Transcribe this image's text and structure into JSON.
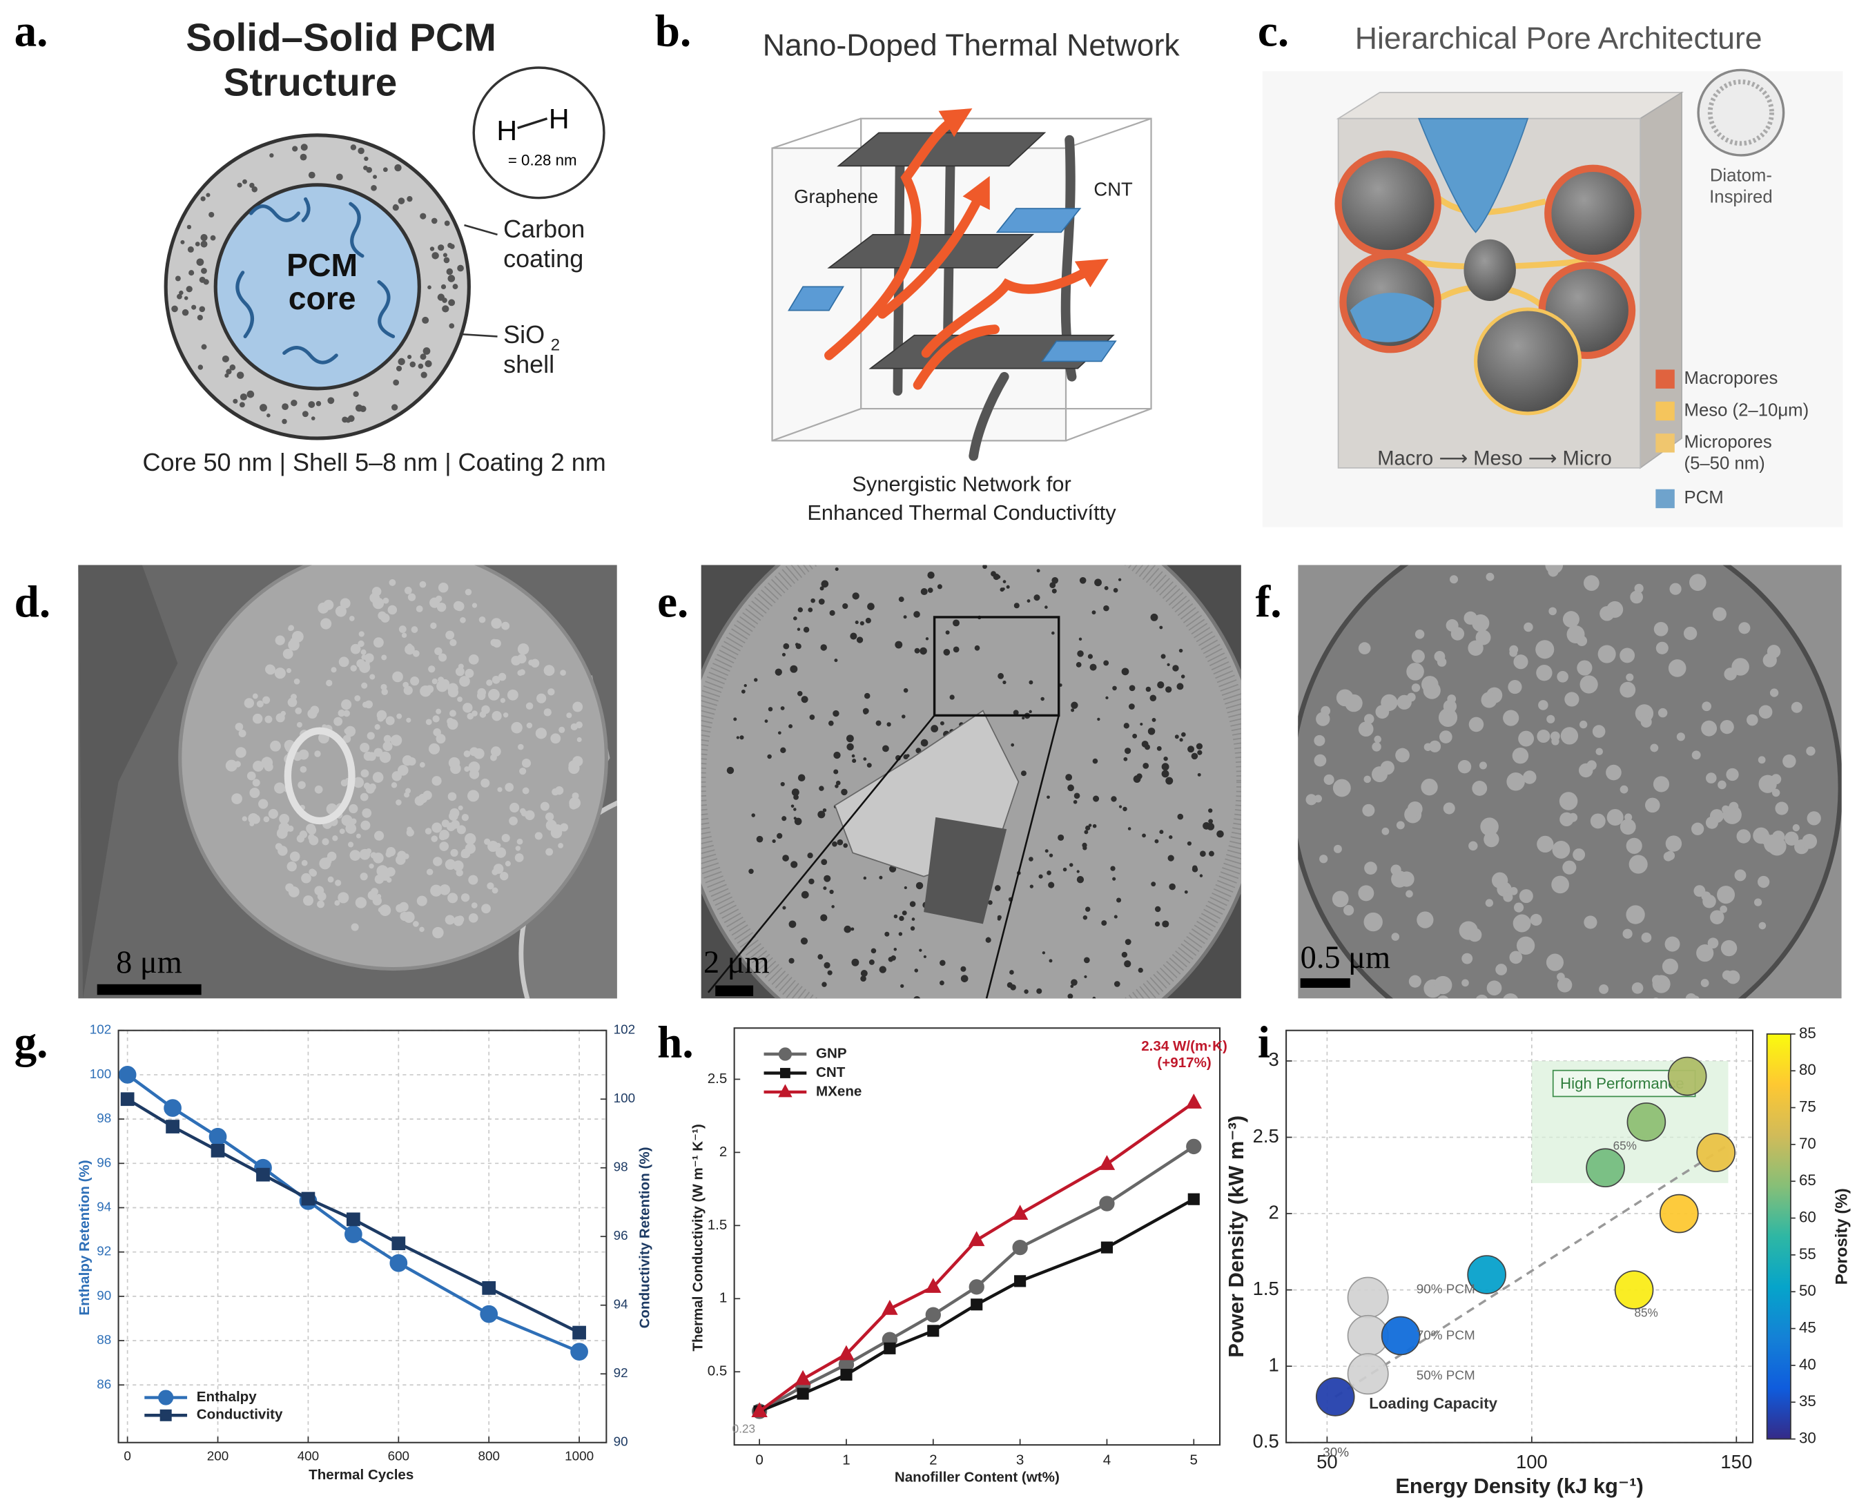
{
  "figure": {
    "panel_labels": [
      "a.",
      "b.",
      "c.",
      "d.",
      "e.",
      "f.",
      "g.",
      "h.",
      "i"
    ]
  },
  "panel_a": {
    "title": [
      "Solid–Solid PCM",
      "Structure"
    ],
    "bond_atoms": [
      "H",
      "H"
    ],
    "bond_length": "= 0.28 nm",
    "core_label": [
      "PCM",
      "core"
    ],
    "coating_label": [
      "Carbon",
      "coating"
    ],
    "shell_label": [
      "SiO",
      "2",
      "shell"
    ],
    "caption": "Core 50 nm | Shell 5–8 nm | Coating 2 nm"
  },
  "panel_b": {
    "title": "Nano-Doped Thermal Network",
    "labels": [
      "Graphene",
      "CNT"
    ],
    "caption": [
      "Synergistic Network for",
      "Enhanced Thermal Conductivítty"
    ]
  },
  "panel_c": {
    "title": "Hierarchical Pore Architecture",
    "inset_label": [
      "Diatom-",
      "Inspired"
    ],
    "legend": [
      {
        "label": [
          "Macropores"
        ],
        "color": "#e0633f"
      },
      {
        "label": [
          "Meso (2–10μm)"
        ],
        "color": "#f5c55c"
      },
      {
        "label": [
          "Micropores",
          "(5–50 nm)"
        ],
        "color": "#f0c66e"
      },
      {
        "label": [
          "PCM"
        ],
        "color": "#6fa3cc"
      }
    ],
    "flow": "Macro ⟶ Meso ⟶ Micro"
  },
  "micrographs": [
    {
      "scale_bar": "8 μm"
    },
    {
      "scale_bar": "2 μm"
    },
    {
      "scale_bar": "0.5 μm"
    }
  ],
  "chart_data": [
    {
      "type": "line",
      "xlabel": "Thermal Cycles",
      "ylabel": "Enthalpy Retention (%)",
      "y2label": "Conductivity Retention (%)",
      "x": [
        0,
        100,
        200,
        300,
        400,
        500,
        600,
        800,
        1000
      ],
      "xlim": [
        -20,
        1060
      ],
      "xticks": [
        0,
        200,
        400,
        600,
        800,
        1000
      ],
      "ylim": [
        83.4,
        102
      ],
      "yticks": [
        86,
        88,
        90,
        92,
        94,
        96,
        98,
        100,
        102
      ],
      "y2lim": [
        90,
        102
      ],
      "y2ticks": [
        90,
        92,
        94,
        96,
        98,
        100,
        102
      ],
      "grid": true,
      "legend": "lower left",
      "series": [
        {
          "name": "Enthalpy",
          "color": "#2e6fb7",
          "marker": "circle",
          "values": [
            100,
            98.5,
            97.2,
            95.8,
            94.3,
            92.8,
            91.5,
            89.2,
            87.5
          ]
        },
        {
          "name": "Conductivity",
          "color": "#1d3a63",
          "marker": "square",
          "axis": "y2",
          "values": [
            100,
            99.2,
            98.5,
            97.8,
            97.1,
            96.5,
            95.8,
            94.5,
            93.2
          ]
        }
      ]
    },
    {
      "type": "line",
      "xlabel": "Nanofiller Content (wt%)",
      "ylabel": "Thermal Conductivity (W m⁻¹ K⁻¹)",
      "x": [
        0,
        0.5,
        1,
        1.5,
        2,
        2.5,
        3,
        4,
        5
      ],
      "xlim": [
        -0.29,
        5.3
      ],
      "xticks": [
        0,
        1,
        2,
        3,
        4,
        5
      ],
      "ylim": [
        0,
        2.85
      ],
      "yticks": [
        0.5,
        1,
        1.5,
        2,
        2.5
      ],
      "grid": false,
      "legend": "upper left",
      "series": [
        {
          "name": "GNP",
          "color": "#676767",
          "marker": "circle",
          "values": [
            0.23,
            0.4,
            0.55,
            0.72,
            0.89,
            1.08,
            1.35,
            1.65,
            2.04
          ]
        },
        {
          "name": "CNT",
          "color": "#141414",
          "marker": "square",
          "values": [
            0.23,
            0.35,
            0.48,
            0.66,
            0.78,
            0.96,
            1.12,
            1.35,
            1.68
          ]
        },
        {
          "name": "MXene",
          "color": "#c0182b",
          "marker": "triangle",
          "values": [
            0.23,
            0.45,
            0.62,
            0.93,
            1.08,
            1.4,
            1.58,
            1.92,
            2.34
          ]
        }
      ],
      "annotations": [
        "2.34 W/(m·K)",
        "(+917%)",
        "0.23"
      ]
    },
    {
      "type": "scatter",
      "xlabel": "Energy Density (kJ kg⁻¹)",
      "ylabel": "Power Density (kW m⁻³)",
      "xlim": [
        40,
        154
      ],
      "xticks": [
        50,
        100,
        150
      ],
      "ylim": [
        0.5,
        3.2
      ],
      "yticks": [
        0.5,
        1,
        1.5,
        2,
        2.5,
        3
      ],
      "grid": true,
      "x": [
        52,
        60,
        60,
        60,
        68,
        89,
        118,
        128,
        138,
        136,
        145,
        125
      ],
      "y": [
        0.8,
        1.45,
        1.2,
        0.95,
        1.2,
        1.6,
        2.3,
        2.6,
        2.9,
        2.0,
        2.4,
        1.5
      ],
      "porosity": [
        33,
        null,
        null,
        null,
        40,
        50,
        63,
        65,
        68,
        78,
        75,
        83
      ],
      "missing_color": "#d0d0d0",
      "colormap": "parula",
      "clim": [
        30,
        85
      ],
      "cticks": [
        30,
        35,
        40,
        45,
        50,
        55,
        60,
        65,
        70,
        75,
        80,
        85
      ],
      "clabel": "Porosity (%)",
      "trend": {
        "x": [
          52,
          148
        ],
        "y": [
          0.8,
          2.45
        ]
      },
      "highlight": {
        "label": "High Performance",
        "x": [
          100,
          148
        ],
        "y": [
          2.2,
          3.0
        ]
      },
      "annotations": [
        "30%",
        "90% PCM",
        "70% PCM",
        "50% PCM",
        "Loading Capacity",
        "65%",
        "85%"
      ]
    }
  ]
}
